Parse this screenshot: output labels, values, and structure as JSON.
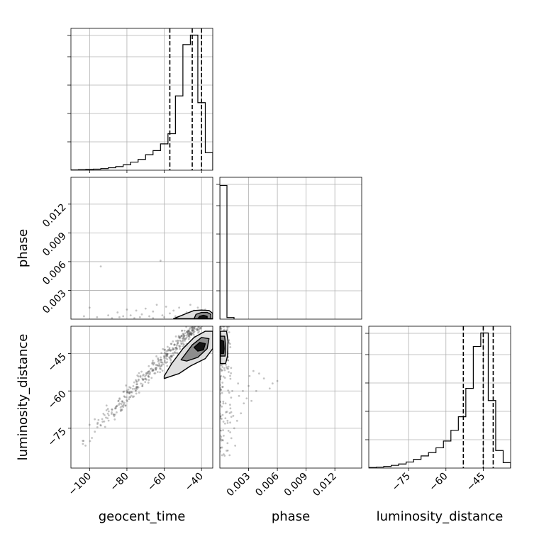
{
  "chart_data": {
    "type": "corner",
    "parameters": [
      "geocent_time",
      "phase",
      "luminosity_distance"
    ],
    "grid": true,
    "line_color": "#000000",
    "scatter_color": "#555555",
    "contour_fill_colors": [
      "#d9d9d9",
      "#7f7f7f",
      "#000000"
    ],
    "panels": {
      "geocent_time_hist": {
        "xlim": [
          -110,
          -34
        ],
        "ylim": [
          0,
          1.05
        ],
        "x_ticks": [
          -100,
          -80,
          -60,
          -40
        ],
        "edges": [
          -110,
          -106,
          -102,
          -98,
          -94,
          -90,
          -86,
          -82,
          -78,
          -74,
          -70,
          -66,
          -62,
          -58,
          -54,
          -50,
          -46,
          -42,
          -38,
          -34
        ],
        "heights": [
          0.002,
          0.004,
          0.006,
          0.008,
          0.012,
          0.018,
          0.027,
          0.04,
          0.06,
          0.08,
          0.115,
          0.145,
          0.195,
          0.27,
          0.55,
          0.93,
          1.0,
          0.5,
          0.13
        ],
        "quantiles": [
          -57,
          -45,
          -40
        ]
      },
      "phase_hist": {
        "xlim": [
          0,
          0.0148
        ],
        "ylim": [
          0,
          1.05
        ],
        "x_ticks": [
          0.003,
          0.006,
          0.009,
          0.012
        ],
        "x_tick_labels": [
          "0.003",
          "0.006",
          "0.009",
          "0.012"
        ],
        "edges": [
          0,
          0.00074,
          0.00148
        ],
        "heights": [
          0.99,
          0.012
        ]
      },
      "luminosity_distance_hist": {
        "xlim": [
          -91,
          -34
        ],
        "ylim": [
          0,
          1.05
        ],
        "x_ticks": [
          -75,
          -60,
          -45
        ],
        "edges": [
          -91,
          -88,
          -85,
          -82,
          -79,
          -76,
          -73,
          -70,
          -67,
          -64,
          -61,
          -58,
          -55,
          -52,
          -49,
          -46,
          -43,
          -40,
          -37,
          -34
        ],
        "heights": [
          0.004,
          0.007,
          0.012,
          0.02,
          0.03,
          0.045,
          0.065,
          0.09,
          0.115,
          0.15,
          0.2,
          0.28,
          0.38,
          0.59,
          0.9,
          1.0,
          0.5,
          0.13,
          0.04
        ],
        "quantiles": [
          -53,
          -45,
          -41
        ]
      },
      "geocent_time_vs_phase": {
        "xlim": [
          -110,
          -34
        ],
        "ylim": [
          0,
          0.0148
        ],
        "y_ticks": [
          0.003,
          0.006,
          0.009,
          0.012
        ],
        "y_tick_labels": [
          "0.003",
          "0.006",
          "0.009",
          "0.012"
        ],
        "scatter_points": [
          [
            -94,
            0.0055
          ],
          [
            -62,
            0.0061
          ],
          [
            -100,
            0.0012
          ],
          [
            -80,
            0.001
          ],
          [
            -75,
            0.0009
          ],
          [
            -70,
            0.0011
          ],
          [
            -66,
            0.0008
          ],
          [
            -59,
            0.0013
          ],
          [
            -55,
            0.0009
          ],
          [
            -85,
            0.0007
          ],
          [
            -90,
            0.0004
          ],
          [
            -103,
            0.0003
          ],
          [
            -72,
            0.0005
          ],
          [
            -48,
            0.0007
          ],
          [
            -52,
            0.0012
          ],
          [
            -64,
            0.0015
          ],
          [
            -78,
            0.0004
          ],
          [
            -68,
            0.0003
          ],
          [
            -57,
            0.0006
          ],
          [
            -44,
            0.0009
          ],
          [
            -96,
            0.0002
          ],
          [
            -82,
            0.0003
          ],
          [
            -88,
            0.0001
          ],
          [
            -61,
            0.0004
          ],
          [
            -73,
            0.0002
          ],
          [
            -50,
            0.0004
          ],
          [
            -46,
            0.0015
          ],
          [
            -42,
            0.0012
          ],
          [
            -38,
            0.001
          ],
          [
            -36,
            0.0006
          ],
          [
            -60,
            0.0002
          ],
          [
            -54,
            0.0003
          ],
          [
            -66,
            0.0001
          ],
          [
            -76,
            0.0001
          ],
          [
            -84,
            0.0002
          ]
        ],
        "contours": [
          {
            "level": 1,
            "path": [
              [
                -55,
                5e-05
              ],
              [
                -48,
                0.0006
              ],
              [
                -44,
                0.0009
              ],
              [
                -40,
                0.00095
              ],
              [
                -36,
                0.0009
              ],
              [
                -34,
                0.0006
              ],
              [
                -34,
                5e-05
              ]
            ]
          },
          {
            "level": 2,
            "path": [
              [
                -44,
                5e-05
              ],
              [
                -43,
                0.0005
              ],
              [
                -40,
                0.0007
              ],
              [
                -37,
                0.0007
              ],
              [
                -35,
                0.0005
              ],
              [
                -35,
                5e-05
              ]
            ]
          },
          {
            "level": 3,
            "path": [
              [
                -42,
                5e-05
              ],
              [
                -41,
                0.0003
              ],
              [
                -39,
                0.0004
              ],
              [
                -37,
                0.0003
              ],
              [
                -37,
                5e-05
              ]
            ]
          }
        ]
      },
      "geocent_time_vs_luminosity_distance": {
        "xlim": [
          -110,
          -34
        ],
        "ylim": [
          -91,
          -34
        ],
        "x_ticks": [
          -100,
          -80,
          -60,
          -40
        ],
        "y_ticks": [
          -75,
          -60,
          -45
        ],
        "trend": {
          "slope": 0.75,
          "intercept": -2,
          "spread": 2.2
        },
        "contours": [
          {
            "level": 1,
            "path": [
              [
                -60,
                -54
              ],
              [
                -56,
                -49
              ],
              [
                -50,
                -43
              ],
              [
                -44,
                -38.5
              ],
              [
                -38,
                -36
              ],
              [
                -34,
                -36
              ],
              [
                -34,
                -43
              ],
              [
                -38,
                -47
              ],
              [
                -46,
                -50
              ],
              [
                -52,
                -53
              ],
              [
                -60,
                -55
              ]
            ]
          },
          {
            "level": 2,
            "path": [
              [
                -51,
                -47.5
              ],
              [
                -45,
                -41.5
              ],
              [
                -40,
                -38.5
              ],
              [
                -36,
                -39
              ],
              [
                -37,
                -43
              ],
              [
                -42,
                -46.5
              ],
              [
                -48,
                -48
              ]
            ]
          },
          {
            "level": 3,
            "path": [
              [
                -44,
                -42.5
              ],
              [
                -41,
                -40.5
              ],
              [
                -38,
                -41
              ],
              [
                -39,
                -43.5
              ],
              [
                -42,
                -44
              ]
            ]
          }
        ]
      },
      "phase_vs_luminosity_distance": {
        "xlim": [
          0,
          0.0148
        ],
        "ylim": [
          -91,
          -34
        ],
        "x_ticks": [
          0.003,
          0.006,
          0.009,
          0.012
        ],
        "x_tick_labels": [
          "0.003",
          "0.006",
          "0.009",
          "0.012"
        ],
        "scatter_points": [
          [
            0.0031,
            -54
          ],
          [
            0.006,
            -56
          ],
          [
            0.0055,
            -57
          ],
          [
            0.0052,
            -59
          ],
          [
            0.0028,
            -63
          ],
          [
            0.0025,
            -65
          ],
          [
            0.0022,
            -69
          ],
          [
            0.0018,
            -72
          ],
          [
            0.0015,
            -75
          ],
          [
            0.0012,
            -79
          ],
          [
            0.0035,
            -52
          ],
          [
            0.0041,
            -53
          ],
          [
            0.0046,
            -55
          ],
          [
            0.0009,
            -76
          ],
          [
            0.002,
            -62
          ],
          [
            0.003,
            -58
          ],
          [
            0.0014,
            -70
          ],
          [
            0.0011,
            -67
          ],
          [
            0.0008,
            -81
          ],
          [
            0.0007,
            -84
          ],
          [
            0.0016,
            -82
          ],
          [
            0.0005,
            -86
          ],
          [
            0.0024,
            -60
          ],
          [
            0.0038,
            -60
          ],
          [
            0.0033,
            -64
          ],
          [
            0.0008,
            -72
          ],
          [
            0.0006,
            -65
          ],
          [
            0.0004,
            -78
          ],
          [
            0.0019,
            -57
          ],
          [
            0.0013,
            -60
          ]
        ],
        "contours": [
          {
            "level": 1,
            "path": [
              [
                5e-05,
                -36
              ],
              [
                0.0007,
                -36
              ],
              [
                0.00085,
                -40
              ],
              [
                0.0008,
                -46
              ],
              [
                0.0006,
                -49
              ],
              [
                5e-05,
                -49
              ]
            ]
          },
          {
            "level": 2,
            "path": [
              [
                5e-05,
                -38
              ],
              [
                0.0005,
                -38
              ],
              [
                0.0006,
                -42
              ],
              [
                0.00055,
                -46
              ],
              [
                5e-05,
                -46
              ]
            ]
          },
          {
            "level": 3,
            "path": [
              [
                5e-05,
                -39.5
              ],
              [
                0.0004,
                -40
              ],
              [
                0.00045,
                -43
              ],
              [
                0.0004,
                -45
              ],
              [
                5e-05,
                -45
              ]
            ]
          }
        ]
      }
    }
  }
}
